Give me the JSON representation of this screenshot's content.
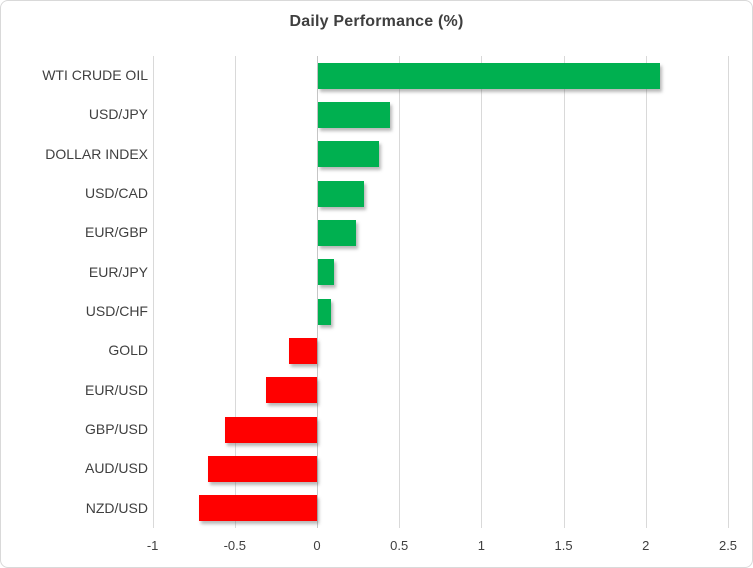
{
  "chart_data": {
    "type": "bar",
    "orientation": "horizontal",
    "title": "Daily Performance (%)",
    "categories": [
      "WTI CRUDE OIL",
      "USD/JPY",
      "DOLLAR INDEX",
      "USD/CAD",
      "EUR/GBP",
      "EUR/JPY",
      "USD/CHF",
      "GOLD",
      "EUR/USD",
      "GBP/USD",
      "AUD/USD",
      "NZD/USD"
    ],
    "values": [
      2.08,
      0.44,
      0.37,
      0.28,
      0.23,
      0.1,
      0.08,
      -0.17,
      -0.31,
      -0.56,
      -0.66,
      -0.72
    ],
    "xlabel": "",
    "ylabel": "",
    "xlim": [
      -1,
      2.5
    ],
    "xticks": [
      -1,
      -0.5,
      0,
      0.5,
      1,
      1.5,
      2,
      2.5
    ],
    "xtick_labels": [
      "-1",
      "-0.5",
      "0",
      "0.5",
      "1",
      "1.5",
      "2",
      "2.5"
    ],
    "grid": true,
    "legend": false,
    "bar_color_rule": "positive values green, negative values red"
  },
  "colors": {
    "positive": "#00B050",
    "negative": "#FF0000",
    "gridline": "#D9D9D9",
    "zero_axis": "#C6C6C6",
    "text": "#3F3F3F",
    "frame_border": "#D9D9D9",
    "background": "#FFFFFF"
  }
}
